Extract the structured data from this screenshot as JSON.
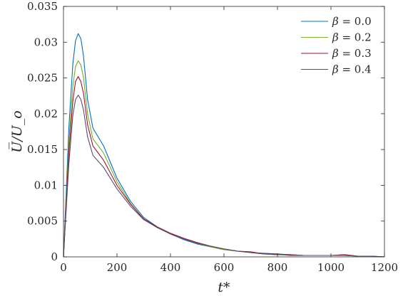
{
  "chart_data": {
    "type": "line",
    "xlabel": "t*",
    "ylabel": "U̅/U_o",
    "xlim": [
      0,
      1200
    ],
    "ylim": [
      0,
      0.035
    ],
    "xticks": [
      "0",
      "200",
      "400",
      "600",
      "800",
      "1000",
      "1200"
    ],
    "yticks": [
      "0",
      "0.005",
      "0.01",
      "0.015",
      "0.02",
      "0.025",
      "0.03",
      "0.035"
    ],
    "grid": false,
    "legend_position": "top-right",
    "series": [
      {
        "name": "β = 0.0",
        "legend_symbol": "β",
        "legend_value": "= 0.0",
        "color": "#0072BD",
        "x": [
          0,
          20,
          35,
          45,
          55,
          65,
          75,
          90,
          110,
          150,
          200,
          250,
          300,
          350,
          400,
          450,
          500,
          550,
          600,
          650,
          700,
          750,
          800,
          850,
          900,
          950,
          1000,
          1050,
          1100,
          1150,
          1200
        ],
        "y": [
          0,
          0.018,
          0.027,
          0.0302,
          0.0312,
          0.0305,
          0.028,
          0.022,
          0.018,
          0.0155,
          0.011,
          0.0078,
          0.0055,
          0.0042,
          0.0032,
          0.0024,
          0.0018,
          0.0014,
          0.0011,
          0.0008,
          0.0006,
          0.0005,
          0.0004,
          0.0003,
          0.0002,
          0.0002,
          0.0002,
          0.0003,
          0.0001,
          0.0001,
          0
        ]
      },
      {
        "name": "β = 0.2",
        "legend_symbol": "β",
        "legend_value": "= 0.2",
        "color": "#77AC30",
        "x": [
          0,
          20,
          35,
          45,
          55,
          65,
          75,
          90,
          110,
          150,
          200,
          250,
          300,
          350,
          400,
          450,
          500,
          550,
          600,
          650,
          700,
          750,
          800,
          850,
          900,
          950,
          1000,
          1050,
          1100,
          1150,
          1200
        ],
        "y": [
          0,
          0.016,
          0.0238,
          0.0266,
          0.0274,
          0.0268,
          0.025,
          0.02,
          0.0165,
          0.0145,
          0.0105,
          0.0075,
          0.0053,
          0.0041,
          0.0032,
          0.0025,
          0.0019,
          0.0014,
          0.001,
          0.0008,
          0.0006,
          0.0004,
          0.0003,
          0.0002,
          0.0002,
          0.0002,
          0.0002,
          0.0002,
          0.0001,
          0.0001,
          0
        ]
      },
      {
        "name": "β = 0.3",
        "legend_symbol": "β",
        "legend_value": "= 0.3",
        "color": "#A2142F",
        "x": [
          0,
          20,
          35,
          45,
          55,
          65,
          75,
          90,
          110,
          150,
          200,
          250,
          300,
          350,
          400,
          450,
          500,
          550,
          600,
          650,
          700,
          750,
          800,
          850,
          900,
          950,
          1000,
          1050,
          1100,
          1150,
          1200
        ],
        "y": [
          0,
          0.0145,
          0.0218,
          0.0245,
          0.0252,
          0.0245,
          0.0228,
          0.0185,
          0.0155,
          0.0135,
          0.01,
          0.0074,
          0.0053,
          0.0042,
          0.0033,
          0.0026,
          0.002,
          0.0015,
          0.0011,
          0.0008,
          0.0007,
          0.0004,
          0.0004,
          0.0002,
          0.0002,
          0.0002,
          0.0002,
          0.0003,
          0.0001,
          0.0001,
          0
        ]
      },
      {
        "name": "β = 0.4",
        "legend_symbol": "β",
        "legend_value": "= 0.4",
        "color": "#5A4A6E",
        "x": [
          0,
          20,
          35,
          45,
          55,
          65,
          75,
          90,
          110,
          150,
          200,
          250,
          300,
          350,
          400,
          450,
          500,
          550,
          600,
          650,
          700,
          750,
          800,
          850,
          900,
          950,
          1000,
          1050,
          1100,
          1150,
          1200
        ],
        "y": [
          0,
          0.013,
          0.0198,
          0.022,
          0.0226,
          0.022,
          0.0205,
          0.0168,
          0.0142,
          0.0125,
          0.0095,
          0.0071,
          0.0052,
          0.0041,
          0.0032,
          0.0025,
          0.0019,
          0.0015,
          0.0011,
          0.0008,
          0.0006,
          0.0004,
          0.0003,
          0.0003,
          0.0002,
          0.0002,
          0.0002,
          0.0002,
          0.0001,
          0.0001,
          0
        ]
      }
    ]
  }
}
